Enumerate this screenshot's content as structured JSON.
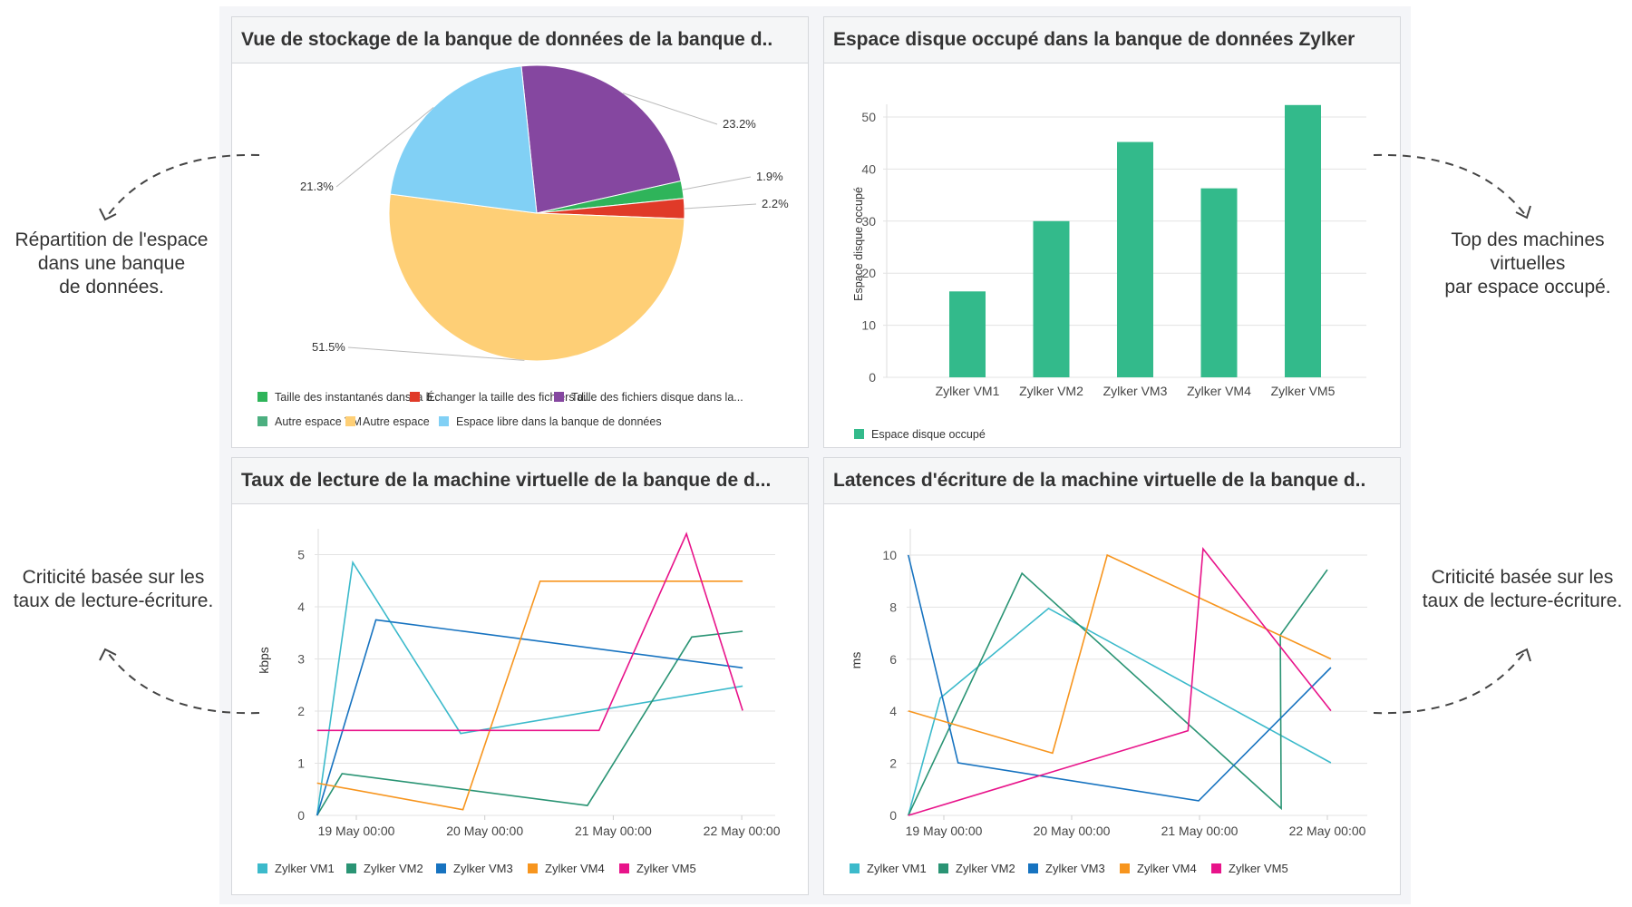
{
  "annotations": {
    "top_left": [
      "Répartition de l'espace",
      "dans une banque",
      "de données."
    ],
    "top_right": [
      "Top des machines",
      "virtuelles",
      "par espace occupé."
    ],
    "bottom_left": [
      "Criticité basée sur les",
      "taux de lecture-écriture."
    ],
    "bottom_right": [
      "Criticité basée sur les",
      "taux de lecture-écriture."
    ]
  },
  "panels": {
    "storage": {
      "title": "Vue de stockage de la banque de données de la banque d.."
    },
    "disk": {
      "title": "Espace disque occupé dans la banque de données Zylker"
    },
    "read": {
      "title": "Taux de lecture de la machine virtuelle de la banque de d..."
    },
    "latency": {
      "title": "Latences d'écriture de la machine virtuelle de la banque d.."
    }
  },
  "chart_data": [
    {
      "type": "pie",
      "slices": [
        {
          "name": "Taille des fichiers disque dans la...",
          "value": 23.2,
          "label": "23.2%",
          "color": "#8547a0"
        },
        {
          "name": "Taille des instantanés dans la b..",
          "value": 1.9,
          "label": "1.9%",
          "color": "#2fb45a"
        },
        {
          "name": "Échanger la taille des fichiers d..",
          "value": 2.2,
          "label": "2.2%",
          "color": "#e03a28"
        },
        {
          "name": "Autre espace",
          "value": 51.5,
          "label": "51.5%",
          "color": "#fecf76"
        },
        {
          "name": "Espace libre dans la banque de données",
          "value": 21.3,
          "label": "21.3%",
          "color": "#81d0f5"
        }
      ],
      "legend": [
        {
          "name": "Taille des instantanés dans la b..",
          "color": "#2fb45a"
        },
        {
          "name": "Échanger la taille des fichiers d..",
          "color": "#e03a28"
        },
        {
          "name": "Taille des fichiers disque dans la...",
          "color": "#8547a0"
        },
        {
          "name": "Autre espace VM",
          "color": "#4caf80"
        },
        {
          "name": "Autre espace",
          "color": "#fecf76"
        },
        {
          "name": "Espace libre dans la banque de données",
          "color": "#81d0f5"
        }
      ],
      "legend_position": "bottom"
    },
    {
      "type": "bar",
      "categories": [
        "Zylker VM1",
        "Zylker VM2",
        "Zylker VM3",
        "Zylker VM4",
        "Zylker VM5"
      ],
      "series": [
        {
          "name": "Espace disque occupé",
          "values": [
            16.5,
            30,
            45.2,
            36.3,
            52.3
          ],
          "color": "#33ba8b"
        }
      ],
      "ylabel": "Espace disque occupé",
      "ylim": [
        0,
        55
      ],
      "yticks": [
        "0",
        "10",
        "20",
        "30",
        "40",
        "50"
      ],
      "grid": true,
      "legend_position": "bottom-left"
    },
    {
      "type": "line",
      "ylabel": "kbps",
      "ylim": [
        0,
        5.5
      ],
      "yticks": [
        "0",
        "1",
        "2",
        "3",
        "4",
        "5"
      ],
      "xticks": [
        "19 May 00:00",
        "20 May 00:00",
        "21 May 00:00",
        "22 May 00:00"
      ],
      "grid": true,
      "legend_position": "bottom",
      "series": [
        {
          "name": "Zylker VM1",
          "color": "#3cbacb",
          "points": [
            [
              "18 May 16:40",
              0
            ],
            [
              "18 May 23:20",
              4.85
            ],
            [
              "19 May 19:30",
              1.57
            ],
            [
              "22 May 00:10",
              2.48
            ]
          ]
        },
        {
          "name": "Zylker VM2",
          "color": "#2a9474",
          "points": [
            [
              "18 May 16:40",
              0
            ],
            [
              "18 May 21:20",
              0.8
            ],
            [
              "20 May 19:10",
              0.19
            ],
            [
              "21 May 14:40",
              3.42
            ],
            [
              "22 May 00:10",
              3.53
            ]
          ]
        },
        {
          "name": "Zylker VM3",
          "color": "#1773c0",
          "points": [
            [
              "18 May 16:40",
              0
            ],
            [
              "19 May 03:40",
              3.75
            ],
            [
              "22 May 00:10",
              2.83
            ]
          ]
        },
        {
          "name": "Zylker VM4",
          "color": "#f7951e",
          "points": [
            [
              "18 May 16:40",
              0.62
            ],
            [
              "19 May 19:55",
              0.11
            ],
            [
              "20 May 10:20",
              4.49
            ],
            [
              "22 May 00:10",
              4.49
            ]
          ]
        },
        {
          "name": "Zylker VM5",
          "color": "#e8138a",
          "points": [
            [
              "18 May 16:40",
              1.63
            ],
            [
              "20 May 21:20",
              1.63
            ],
            [
              "21 May 13:40",
              5.4
            ],
            [
              "22 May 00:10",
              2.01
            ]
          ]
        }
      ]
    },
    {
      "type": "line",
      "ylabel": "ms",
      "ylim": [
        0,
        11
      ],
      "yticks": [
        "0",
        "2",
        "4",
        "6",
        "8",
        "10"
      ],
      "xticks": [
        "19 May 00:00",
        "20 May 00:00",
        "21 May 00:00",
        "22 May 00:00"
      ],
      "grid": true,
      "legend_position": "bottom",
      "series": [
        {
          "name": "Zylker VM1",
          "color": "#3cbacb",
          "points": [
            [
              "18 May 17:20",
              0
            ],
            [
              "18 May 23:20",
              4.51
            ],
            [
              "19 May 19:40",
              7.95
            ],
            [
              "22 May 00:40",
              2.02
            ]
          ]
        },
        {
          "name": "Zylker VM2",
          "color": "#2a9474",
          "points": [
            [
              "18 May 17:20",
              0
            ],
            [
              "19 May 14:40",
              9.3
            ],
            [
              "21 May 15:20",
              0.27
            ],
            [
              "21 May 15:10",
              6.93
            ],
            [
              "22 May 00:00",
              9.44
            ]
          ]
        },
        {
          "name": "Zylker VM3",
          "color": "#1773c0",
          "points": [
            [
              "18 May 17:20",
              10
            ],
            [
              "19 May 02:40",
              2.02
            ],
            [
              "20 May 23:50",
              0.56
            ],
            [
              "22 May 00:40",
              5.68
            ]
          ]
        },
        {
          "name": "Zylker VM4",
          "color": "#f7951e",
          "points": [
            [
              "18 May 17:20",
              4.01
            ],
            [
              "19 May 20:25",
              2.39
            ],
            [
              "20 May 06:40",
              10
            ],
            [
              "22 May 00:40",
              6.01
            ]
          ]
        },
        {
          "name": "Zylker VM5",
          "color": "#e8138a",
          "points": [
            [
              "18 May 17:20",
              0
            ],
            [
              "20 May 21:50",
              3.25
            ],
            [
              "21 May 00:40",
              10.24
            ],
            [
              "22 May 00:40",
              4.02
            ]
          ]
        }
      ]
    }
  ]
}
